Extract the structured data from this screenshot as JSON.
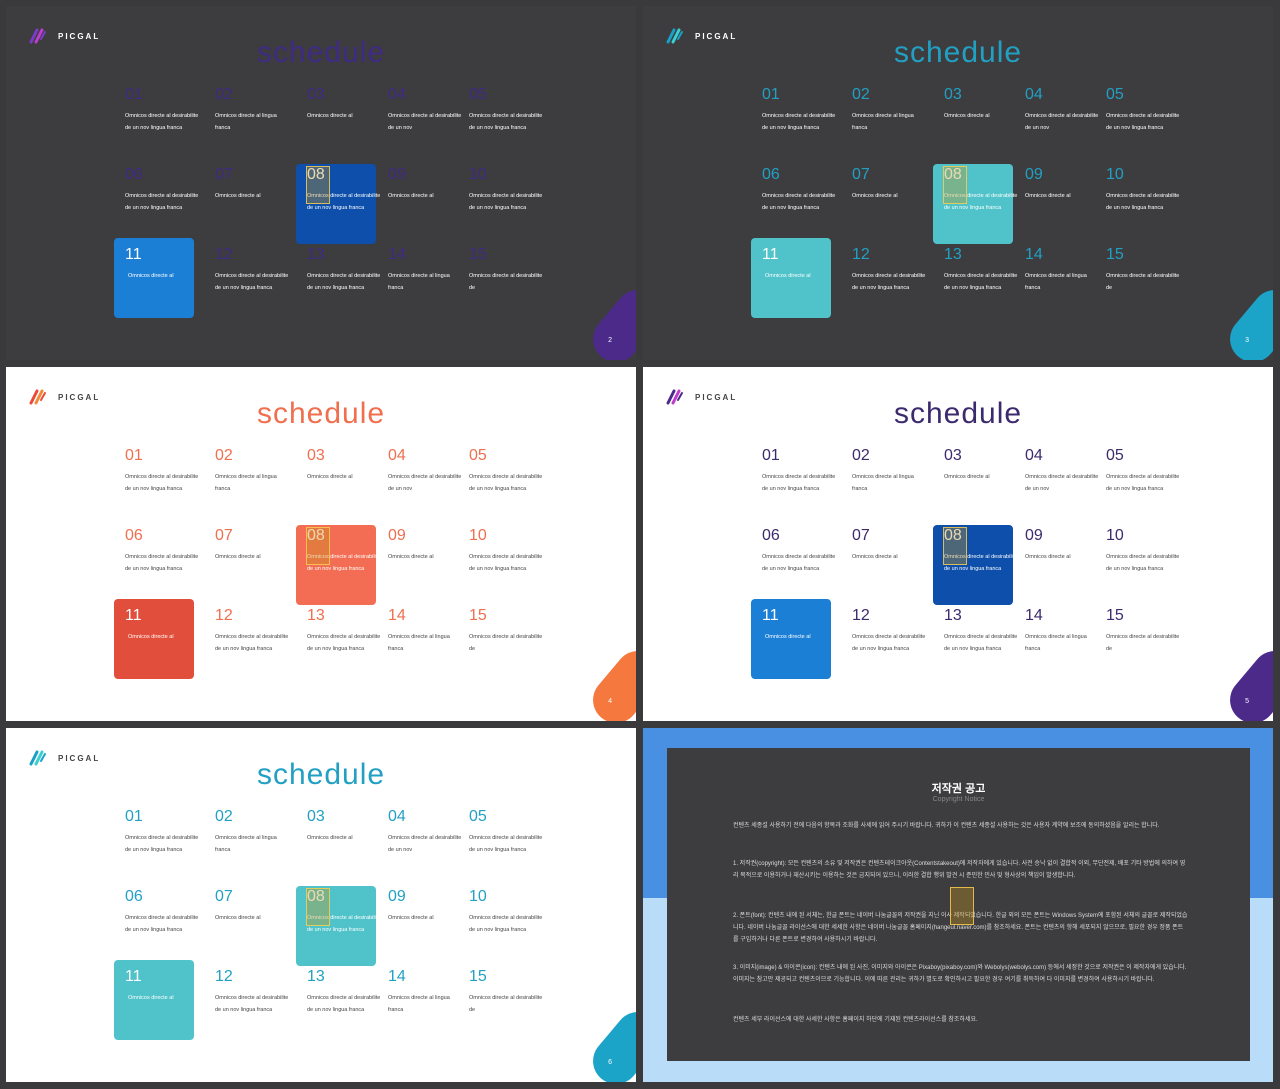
{
  "brand": "PICGAL",
  "title": "schedule",
  "cells": [
    {
      "n": "01",
      "t": "Omnicos directe al desirabilite de un nov lingua franca"
    },
    {
      "n": "02",
      "t": "Omnicos directe al lingua franca"
    },
    {
      "n": "03",
      "t": "Omnicos directe al"
    },
    {
      "n": "04",
      "t": "Omnicos directe al desirabilite de un nov"
    },
    {
      "n": "05",
      "t": "Omnicos directe al desirabilite de un nov lingua franca"
    },
    {
      "n": "06",
      "t": "Omnicos directe al desirabilite de un nov lingua franca"
    },
    {
      "n": "07",
      "t": "Omnicos directe al"
    },
    {
      "n": "08",
      "t": "Omnicos directe al desirabilite de un nov lingua franca"
    },
    {
      "n": "09",
      "t": "Omnicos directe al"
    },
    {
      "n": "10",
      "t": "Omnicos directe al desirabilite de un nov lingua franca"
    },
    {
      "n": "11",
      "t": "Omnicos directe al"
    },
    {
      "n": "12",
      "t": "Omnicos directe al desirabilite de un nov lingua franca"
    },
    {
      "n": "13",
      "t": "Omnicos directe al desirabilite de un nov lingua franca"
    },
    {
      "n": "14",
      "t": "Omnicos directe al lingua franca"
    },
    {
      "n": "15",
      "t": "Omnicos directe al desirabilite de"
    }
  ],
  "slides": [
    {
      "theme": "dark",
      "accent": "#3f2a84",
      "page": "2",
      "c8": "#0d4faa",
      "c11": "#1c7fd6",
      "corner": "#4c2a8a",
      "logo": [
        "#7a3cc8",
        "#c03ccf"
      ]
    },
    {
      "theme": "dark",
      "accent": "#22a0c4",
      "page": "3",
      "c8": "#4fc3c9",
      "c11": "#4fc3c9",
      "corner": "#1ba3c8",
      "logo": [
        "#1aa0c8",
        "#3bd0d0"
      ]
    },
    {
      "theme": "light",
      "accent": "#ef6f4f",
      "page": "4",
      "c8": "#f26d53",
      "c11": "#e24e3c",
      "corner": "#f5783f",
      "logo": [
        "#e94a3a",
        "#f28a3a"
      ]
    },
    {
      "theme": "light",
      "accent": "#3c2a6e",
      "page": "5",
      "c8": "#0d4faa",
      "c11": "#1c7fd6",
      "corner": "#4c2a8a",
      "logo": [
        "#4c2a8a",
        "#c03ccf"
      ]
    },
    {
      "theme": "light",
      "accent": "#22a0c4",
      "page": "6",
      "c8": "#4fc3c9",
      "c11": "#4fc3c9",
      "corner": "#1ba3c8",
      "logo": [
        "#1aa0c8",
        "#3bd0d0"
      ]
    }
  ],
  "notice": {
    "title": "저작권 공고",
    "subtitle": "Copyright Notice",
    "p1": "컨텐츠 세종설 사용하기 전에 다음의 항목과 조화를 사세에 읽어 주시기 바랍니다. 귀하가 이 컨텐츠 세종설 사용하는 것은 사용자 계약에 보조에 동의하셨음을 알리는 합니다.",
    "p2": "1. 저작권(copyright): 모든 컨텐츠의 소유 및 저작권은 컨텐츠테이크아웃(Contentstakeout)에 저작자에게 있습니다. 사전 승낙 없이 결합적 이외, 무단전제, 배포 기타 방법에 의하여 영리 목적으로 이용하거나 재산시키는 이용하는 것은 금지되어 있으니, 이러한 결합 행위 발견 시 준민한 민사 및 형사상의 책임이 발생합니다.",
    "p3": "2. 폰트(font): 컨텐츠 내에 된 서체는, 한글 폰트는 네이버 나눔글꼴의 저작권을 지닌 이사 제작되었습니다. 한글 외의 모든 폰트는 Windows System에 포함된 서체의 글꼴로 제작되었습니다. 네이버 나눔글꼴 라이선스에 대한 세세한 사항은 네이버 나눔글꼴 홈페이지(hangeul.naver.com)를 참조하세요. 폰트는 컨텐츠의 항해 세포되지 않으므로, 필요한 경우 정품 폰트를 구입하거나 다른 폰트로 변경하여 사용하시기 바랍니다.",
    "p4": "3. 이미지(image) & 아이콘(icon): 컨텐츠 내에 된 사진, 이미지와 아이콘은 Pixaboy(pixaboy.com)와 Webolys(webolys.com) 등에서 세정한 것으로 저작권은 이 제작자에게 있습니다. 이미지는 참고만 제공되고 컨텐츠이므로 기능합니다. 이에 따른 관리는 귀하가 별도로 확인하시고 필요한 경우 여기를 취득하여 다 이미지를 변경하여 사용하시기 바랍니다.",
    "p5": "컨텐츠 세부 라이선스에 대한 사세한 사항은 홈페이지 하단에 기재된 컨텐츠라이선스를 참조하세요."
  }
}
